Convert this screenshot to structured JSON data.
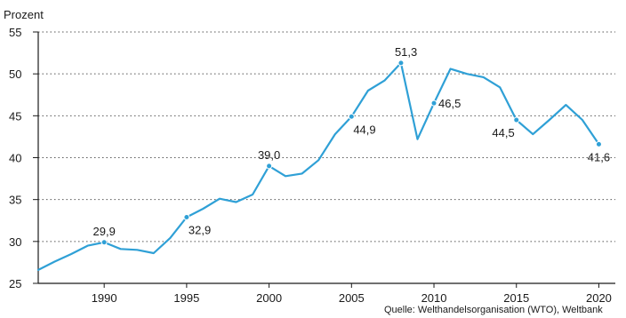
{
  "chart_data": {
    "type": "line",
    "ylabel": "Prozent",
    "ylim": [
      25,
      55
    ],
    "yticks": [
      25,
      30,
      35,
      40,
      45,
      50,
      55
    ],
    "xlim": [
      1986,
      2021
    ],
    "xticks": [
      1990,
      1995,
      2000,
      2005,
      2010,
      2015,
      2020
    ],
    "grid": "horizontal-dotted",
    "series": [
      {
        "color": "#2fa0d6",
        "x": [
          1986,
          1987,
          1988,
          1989,
          1990,
          1991,
          1992,
          1993,
          1994,
          1995,
          1996,
          1997,
          1998,
          1999,
          2000,
          2001,
          2002,
          2003,
          2004,
          2005,
          2006,
          2007,
          2008,
          2009,
          2010,
          2011,
          2012,
          2013,
          2014,
          2015,
          2016,
          2017,
          2018,
          2019,
          2020
        ],
        "y": [
          26.6,
          27.6,
          28.5,
          29.5,
          29.9,
          29.1,
          29.0,
          28.6,
          30.4,
          32.9,
          33.9,
          35.1,
          34.7,
          35.6,
          39.0,
          37.8,
          38.1,
          39.7,
          42.8,
          44.9,
          48.0,
          49.2,
          51.3,
          42.2,
          46.5,
          50.6,
          50.0,
          49.6,
          48.4,
          44.5,
          42.8,
          44.5,
          46.3,
          44.5,
          41.6
        ]
      }
    ],
    "annotations": [
      {
        "x": 1990,
        "y": 29.9,
        "text": "29,9",
        "pos": "above"
      },
      {
        "x": 1995,
        "y": 32.9,
        "text": "32,9",
        "pos": "below-right"
      },
      {
        "x": 2000,
        "y": 39.0,
        "text": "39,0",
        "pos": "above"
      },
      {
        "x": 2005,
        "y": 44.9,
        "text": "44,9",
        "pos": "below-right"
      },
      {
        "x": 2008,
        "y": 51.3,
        "text": "51,3",
        "pos": "above-right"
      },
      {
        "x": 2010,
        "y": 46.5,
        "text": "46,5",
        "pos": "right"
      },
      {
        "x": 2015,
        "y": 44.5,
        "text": "44,5",
        "pos": "below-left"
      },
      {
        "x": 2020,
        "y": 41.6,
        "text": "41,6",
        "pos": "below"
      }
    ],
    "source": "Quelle: Welthandelsorganisation (WTO), Weltbank"
  }
}
